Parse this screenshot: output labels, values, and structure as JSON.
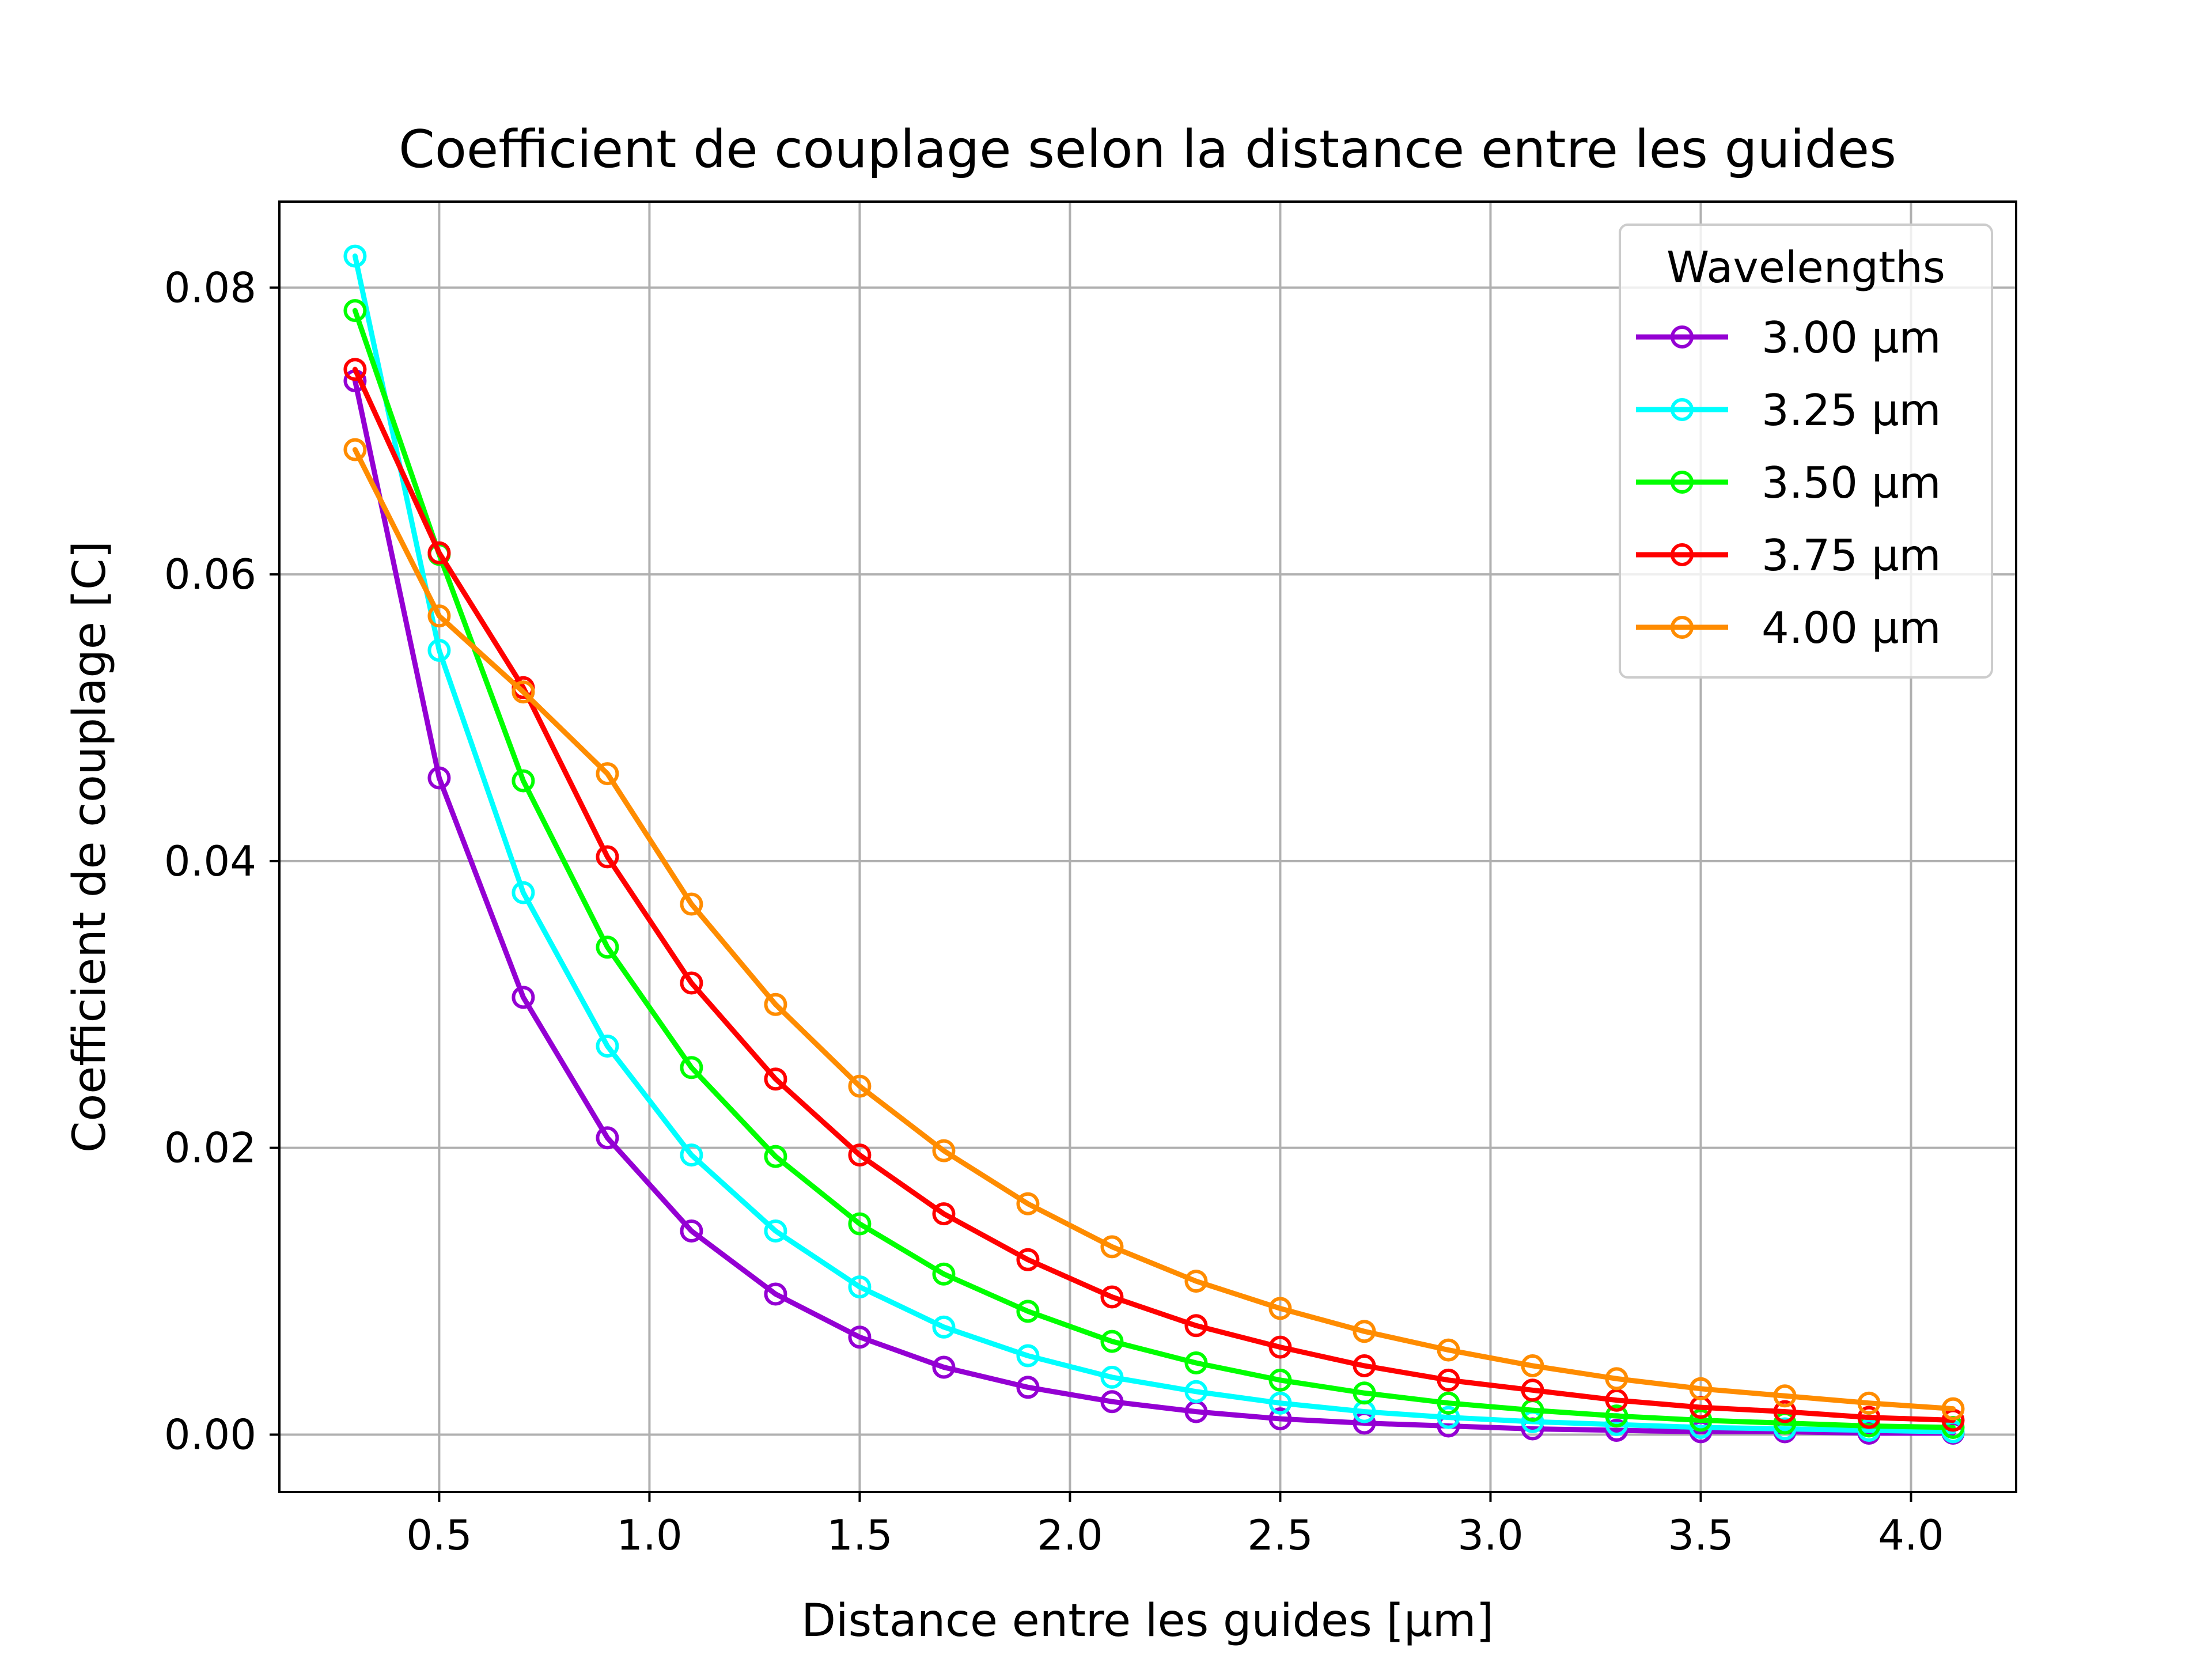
{
  "chart_data": {
    "type": "line",
    "title": "Coefficient de couplage selon la distance entre les guides",
    "xlabel": "Distance entre les guides [μm]",
    "ylabel": "Coefficient de couplage [C]",
    "xlim": [
      0.12,
      4.25
    ],
    "ylim": [
      -0.004,
      0.086
    ],
    "xticks": [
      0.5,
      1.0,
      1.5,
      2.0,
      2.5,
      3.0,
      3.5,
      4.0
    ],
    "xtick_labels": [
      "0.5",
      "1.0",
      "1.5",
      "2.0",
      "2.5",
      "3.0",
      "3.5",
      "4.0"
    ],
    "yticks": [
      0.0,
      0.02,
      0.04,
      0.06,
      0.08
    ],
    "ytick_labels": [
      "0.00",
      "0.02",
      "0.04",
      "0.06",
      "0.08"
    ],
    "grid": true,
    "marker": "open-circle",
    "legend": {
      "title": "Wavelengths",
      "placement": "top-right"
    },
    "x": [
      0.3,
      0.5,
      0.7,
      0.9,
      1.1,
      1.3,
      1.5,
      1.7,
      1.9,
      2.1,
      2.3,
      2.5,
      2.7,
      2.9,
      3.1,
      3.3,
      3.5,
      3.7,
      3.9,
      4.1
    ],
    "series": [
      {
        "name": "3.00 μm",
        "color": "#9400d3",
        "values": [
          0.0735,
          0.0458,
          0.0305,
          0.0207,
          0.0142,
          0.0098,
          0.0068,
          0.0047,
          0.0033,
          0.0023,
          0.0016,
          0.0011,
          0.0008,
          0.0006,
          0.0004,
          0.0003,
          0.0002,
          0.0002,
          0.0001,
          0.0001
        ]
      },
      {
        "name": "3.25 μm",
        "color": "#00ffff",
        "values": [
          0.0822,
          0.0547,
          0.0378,
          0.0271,
          0.0195,
          0.0142,
          0.0103,
          0.0075,
          0.0055,
          0.004,
          0.003,
          0.0022,
          0.0016,
          0.0012,
          0.0009,
          0.0007,
          0.0005,
          0.0004,
          0.0003,
          0.0002
        ]
      },
      {
        "name": "3.50 μm",
        "color": "#00ff00",
        "values": [
          0.0784,
          0.0614,
          0.0456,
          0.034,
          0.0256,
          0.0194,
          0.0147,
          0.0112,
          0.0086,
          0.0065,
          0.005,
          0.0038,
          0.0029,
          0.0022,
          0.0017,
          0.0013,
          0.001,
          0.0008,
          0.0006,
          0.0005
        ]
      },
      {
        "name": "3.75 μm",
        "color": "#ff0000",
        "values": [
          0.0743,
          0.0615,
          0.0521,
          0.0403,
          0.0315,
          0.0248,
          0.0195,
          0.0154,
          0.0122,
          0.0096,
          0.0076,
          0.0061,
          0.0048,
          0.0038,
          0.0031,
          0.0024,
          0.0019,
          0.0016,
          0.0012,
          0.001
        ]
      },
      {
        "name": "4.00 μm",
        "color": "#ff8c00",
        "values": [
          0.0687,
          0.0571,
          0.0518,
          0.0461,
          0.037,
          0.03,
          0.0243,
          0.0198,
          0.0161,
          0.0131,
          0.0107,
          0.0088,
          0.0072,
          0.0059,
          0.0048,
          0.0039,
          0.0032,
          0.0027,
          0.0022,
          0.0018
        ]
      }
    ]
  }
}
